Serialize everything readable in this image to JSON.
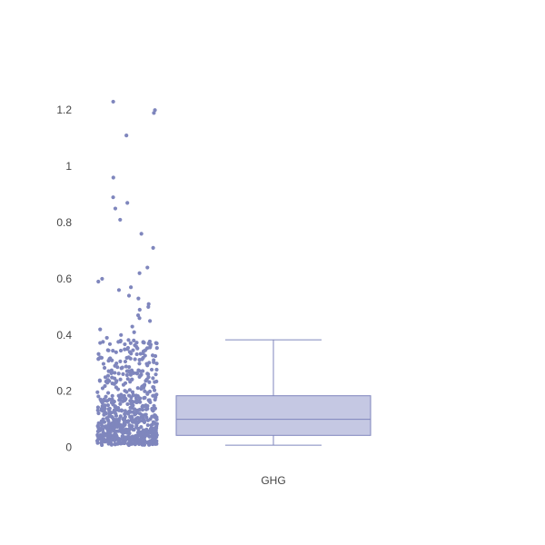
{
  "chart_data": {
    "type": "box",
    "title": "",
    "xlabel": "",
    "ylabel": "",
    "categories": [
      "GHG"
    ],
    "ylim": [
      -0.04,
      1.33
    ],
    "y_ticks": [
      0,
      0.2,
      0.4,
      0.6,
      0.8,
      1,
      1.2
    ],
    "y_tick_labels": [
      "0",
      "0.2",
      "0.4",
      "0.6",
      "0.8",
      "1",
      "1.2"
    ],
    "grid": false,
    "legend": "none",
    "color": "#7f86bd",
    "box_fill": "#c5c8e3",
    "series": [
      {
        "category": "GHG",
        "whisker_low": 0.008,
        "q1": 0.043,
        "median": 0.1,
        "q3": 0.184,
        "whisker_high": 0.383,
        "outliers": [
          0.39,
          0.4,
          0.41,
          0.42,
          0.43,
          0.45,
          0.46,
          0.47,
          0.49,
          0.5,
          0.51,
          0.53,
          0.54,
          0.56,
          0.57,
          0.59,
          0.6,
          0.62,
          0.64,
          0.71,
          0.76,
          0.81,
          0.85,
          0.87,
          0.89,
          0.96,
          1.11,
          1.19,
          1.2,
          1.23
        ]
      }
    ]
  }
}
